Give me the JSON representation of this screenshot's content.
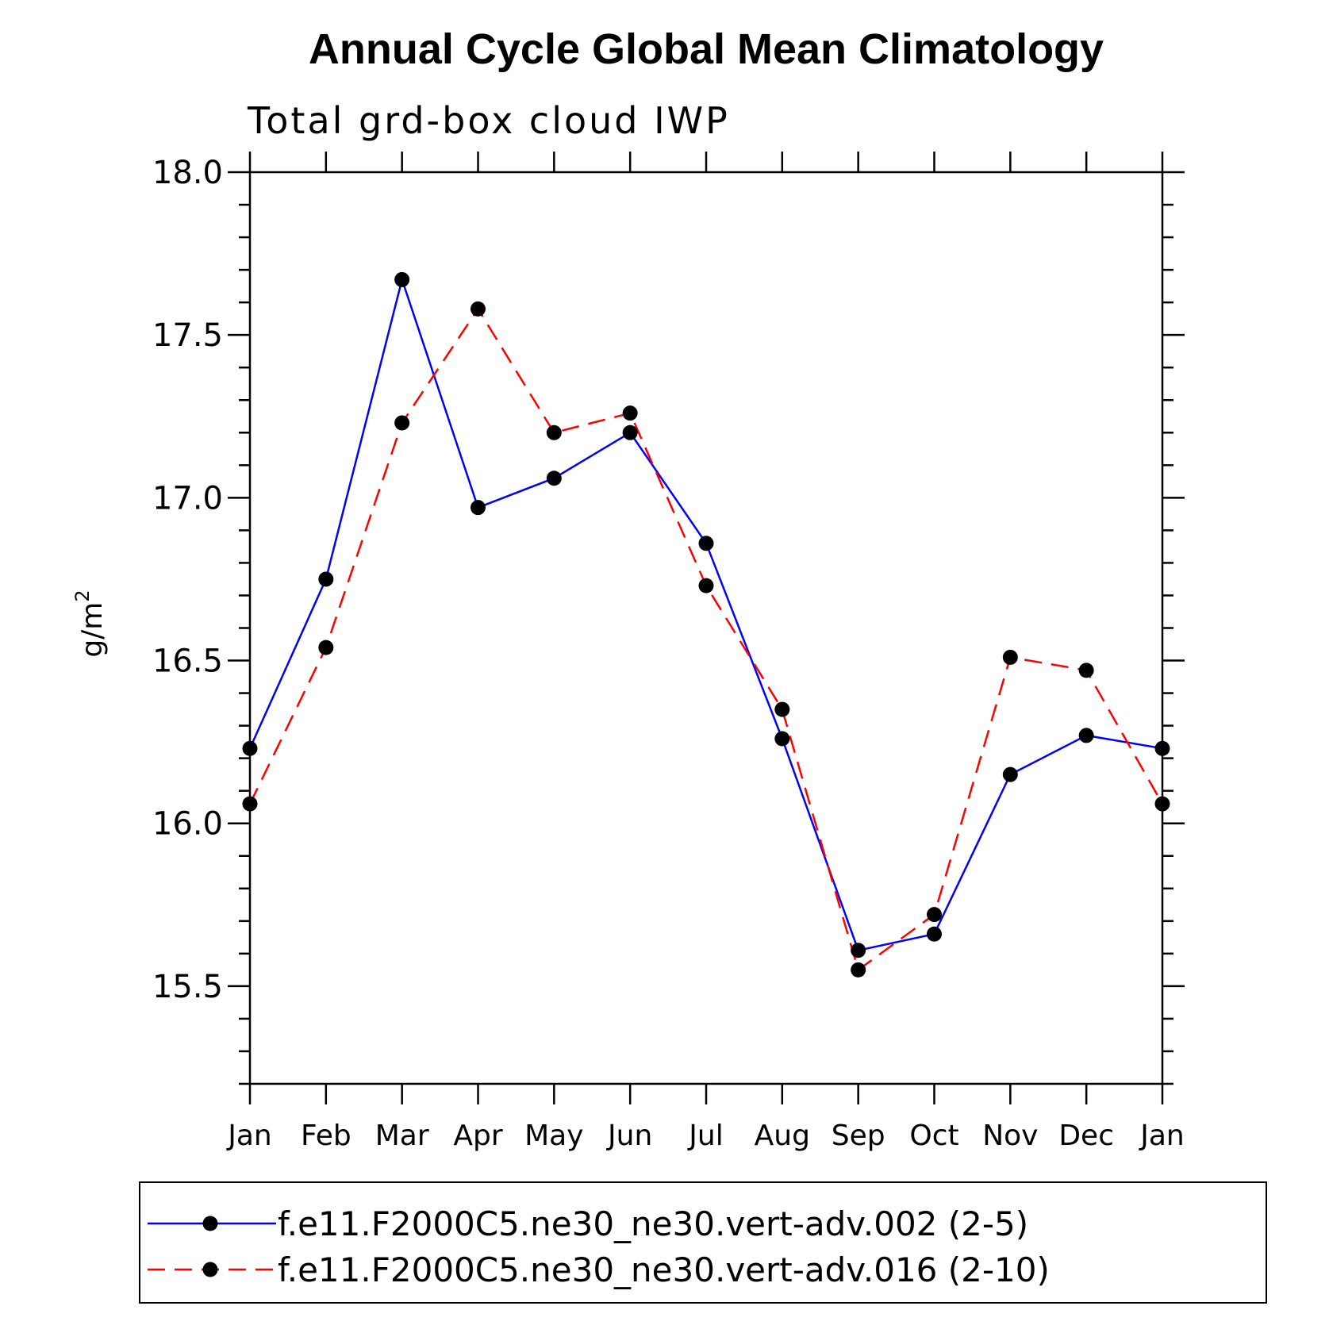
{
  "chart_data": {
    "type": "line",
    "title": "Annual Cycle Global Mean Climatology",
    "subtitle": "Total grd-box cloud IWP",
    "ylabel": "g/m",
    "ylabel_superscript": "2",
    "xlabel": "",
    "categories": [
      "Jan",
      "Feb",
      "Mar",
      "Apr",
      "May",
      "Jun",
      "Jul",
      "Aug",
      "Sep",
      "Oct",
      "Nov",
      "Dec",
      "Jan"
    ],
    "ylim": [
      15.2,
      18.0
    ],
    "yticks": [
      "15.5",
      "16.0",
      "16.5",
      "17.0",
      "17.5",
      "18.0"
    ],
    "yminor_step": 0.1,
    "grid": false,
    "legend_position": "bottom",
    "series": [
      {
        "name": "f.e11.F2000C5.ne30_ne30.vert-adv.002 (2-5)",
        "color": "#0000ff",
        "dash": "solid",
        "values": [
          16.23,
          16.75,
          17.67,
          16.97,
          17.06,
          17.2,
          16.86,
          16.26,
          15.61,
          15.66,
          16.15,
          16.27,
          16.23
        ]
      },
      {
        "name": "f.e11.F2000C5.ne30_ne30.vert-adv.016 (2-10)",
        "color": "#ff0000",
        "dash": "dashed",
        "values": [
          16.06,
          16.54,
          17.23,
          17.58,
          17.2,
          17.26,
          16.73,
          16.35,
          15.55,
          15.72,
          16.51,
          16.47,
          16.06
        ]
      }
    ]
  }
}
